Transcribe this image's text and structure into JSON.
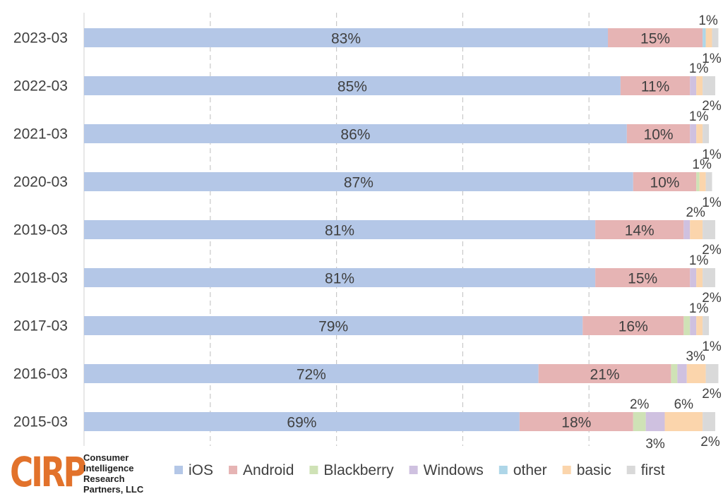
{
  "chart_data": {
    "type": "bar",
    "orientation": "horizontal",
    "stacked": true,
    "title": "",
    "xlabel": "",
    "ylabel": "",
    "xlim": [
      0,
      100
    ],
    "grid": "vertical dashed",
    "legend_position": "bottom",
    "categories": [
      "2023-03",
      "2022-03",
      "2021-03",
      "2020-03",
      "2019-03",
      "2018-03",
      "2017-03",
      "2016-03",
      "2015-03"
    ],
    "series": [
      {
        "name": "iOS",
        "color": "#b4c7e7",
        "values": [
          83,
          85,
          86,
          87,
          81,
          81,
          79,
          72,
          69
        ]
      },
      {
        "name": "Android",
        "color": "#e6b4b4",
        "values": [
          15,
          11,
          10,
          10,
          14,
          15,
          16,
          21,
          18
        ]
      },
      {
        "name": "Blackberry",
        "color": "#cfe2b6",
        "values": [
          0,
          0,
          0,
          0.5,
          0,
          0,
          1,
          1,
          2
        ]
      },
      {
        "name": "Windows",
        "color": "#cfc1e0",
        "values": [
          0,
          1,
          1,
          0,
          1,
          1,
          1,
          1.5,
          3
        ]
      },
      {
        "name": "other",
        "color": "#aed6e8",
        "values": [
          0.5,
          0,
          0,
          0,
          0,
          0,
          0,
          0,
          0
        ]
      },
      {
        "name": "basic",
        "color": "#fbd5ac",
        "values": [
          1,
          1,
          1,
          1,
          2,
          1,
          1,
          3,
          6
        ]
      },
      {
        "name": "first",
        "color": "#d9d9d9",
        "values": [
          1,
          2,
          1,
          1,
          2,
          2,
          1,
          2,
          2
        ]
      }
    ],
    "data_labels": [
      {
        "category": "2023-03",
        "series": "iOS",
        "text": "83%"
      },
      {
        "category": "2023-03",
        "series": "Android",
        "text": "15%"
      },
      {
        "category": "2023-03",
        "series": "basic",
        "text": "1%"
      },
      {
        "category": "2023-03",
        "series": "first",
        "text": "1%"
      },
      {
        "category": "2022-03",
        "series": "iOS",
        "text": "85%"
      },
      {
        "category": "2022-03",
        "series": "Android",
        "text": "11%"
      },
      {
        "category": "2022-03",
        "series": "basic",
        "text": "1%"
      },
      {
        "category": "2022-03",
        "series": "first",
        "text": "2%"
      },
      {
        "category": "2021-03",
        "series": "iOS",
        "text": "86%"
      },
      {
        "category": "2021-03",
        "series": "Android",
        "text": "10%"
      },
      {
        "category": "2021-03",
        "series": "basic",
        "text": "1%"
      },
      {
        "category": "2021-03",
        "series": "first",
        "text": "1%"
      },
      {
        "category": "2020-03",
        "series": "iOS",
        "text": "87%"
      },
      {
        "category": "2020-03",
        "series": "Android",
        "text": "10%"
      },
      {
        "category": "2020-03",
        "series": "basic",
        "text": "1%"
      },
      {
        "category": "2020-03",
        "series": "first",
        "text": "1%"
      },
      {
        "category": "2019-03",
        "series": "iOS",
        "text": "81%"
      },
      {
        "category": "2019-03",
        "series": "Android",
        "text": "14%"
      },
      {
        "category": "2019-03",
        "series": "basic",
        "text": "2%"
      },
      {
        "category": "2019-03",
        "series": "first",
        "text": "2%"
      },
      {
        "category": "2018-03",
        "series": "iOS",
        "text": "81%"
      },
      {
        "category": "2018-03",
        "series": "Android",
        "text": "15%"
      },
      {
        "category": "2018-03",
        "series": "basic",
        "text": "1%"
      },
      {
        "category": "2018-03",
        "series": "first",
        "text": "2%"
      },
      {
        "category": "2017-03",
        "series": "iOS",
        "text": "79%"
      },
      {
        "category": "2017-03",
        "series": "Android",
        "text": "16%"
      },
      {
        "category": "2017-03",
        "series": "basic",
        "text": "1%"
      },
      {
        "category": "2017-03",
        "series": "first",
        "text": "1%"
      },
      {
        "category": "2016-03",
        "series": "iOS",
        "text": "72%"
      },
      {
        "category": "2016-03",
        "series": "Android",
        "text": "21%"
      },
      {
        "category": "2016-03",
        "series": "basic",
        "text": "3%"
      },
      {
        "category": "2016-03",
        "series": "first",
        "text": "2%"
      },
      {
        "category": "2015-03",
        "series": "iOS",
        "text": "69%"
      },
      {
        "category": "2015-03",
        "series": "Android",
        "text": "18%"
      },
      {
        "category": "2015-03",
        "series": "Blackberry",
        "text": "2%"
      },
      {
        "category": "2015-03",
        "series": "Windows",
        "text": "3%"
      },
      {
        "category": "2015-03",
        "series": "basic",
        "text": "6%"
      },
      {
        "category": "2015-03",
        "series": "first",
        "text": "2%"
      }
    ]
  },
  "logo": {
    "mark": "CIRP",
    "lines": [
      "Consumer",
      "Intelligence",
      "Research",
      "Partners, LLC"
    ]
  }
}
